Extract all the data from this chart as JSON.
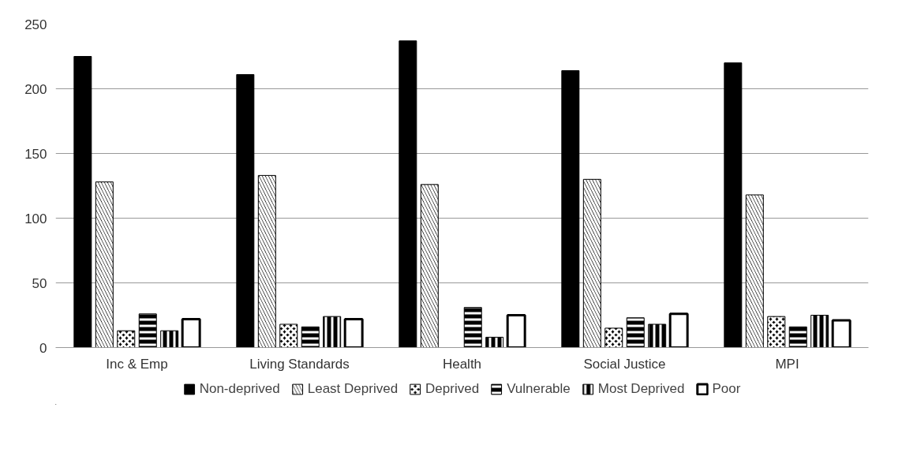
{
  "chart_data": {
    "type": "bar",
    "categories": [
      "Inc & Emp",
      "Living Standards",
      "Health",
      "Social Justice",
      "MPI"
    ],
    "series": [
      {
        "name": "Non-deprived",
        "color": "#000000",
        "values": [
          225,
          211,
          237,
          214,
          220
        ]
      },
      {
        "name": "Least Deprived",
        "color": "#000000",
        "values": [
          128,
          133,
          126,
          130,
          118
        ]
      },
      {
        "name": "Deprived",
        "color": "#000000",
        "values": [
          13,
          18,
          0,
          15,
          24
        ]
      },
      {
        "name": "Vulnerable",
        "color": "#000000",
        "values": [
          26,
          16,
          31,
          23,
          16
        ]
      },
      {
        "name": "Most Deprived",
        "color": "#000000",
        "values": [
          13,
          24,
          8,
          18,
          25
        ]
      },
      {
        "name": "Poor",
        "color": "#000000",
        "values": [
          22,
          22,
          25,
          26,
          21
        ]
      }
    ],
    "ylim": [
      0,
      250
    ],
    "yticks": [
      0,
      50,
      100,
      150,
      200,
      250
    ],
    "grid": "y",
    "legend": "bottom"
  }
}
